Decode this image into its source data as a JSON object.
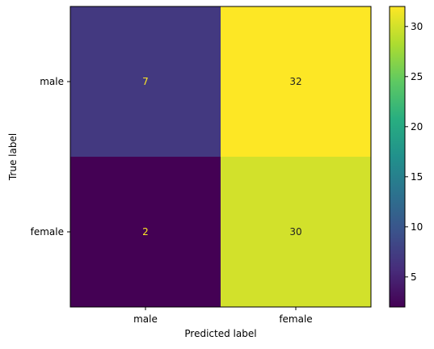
{
  "chart_data": {
    "type": "heatmap",
    "title": "",
    "xlabel": "Predicted label",
    "ylabel": "True label",
    "x_categories": [
      "male",
      "female"
    ],
    "y_categories": [
      "male",
      "female"
    ],
    "matrix": [
      [
        7,
        32
      ],
      [
        2,
        30
      ]
    ],
    "colormap": "viridis",
    "colorbar": {
      "range": [
        2,
        32
      ],
      "ticks": [
        5,
        10,
        15,
        20,
        25,
        30
      ]
    },
    "text_colors": {
      "light": "#fde725",
      "dark": "#222222"
    }
  }
}
